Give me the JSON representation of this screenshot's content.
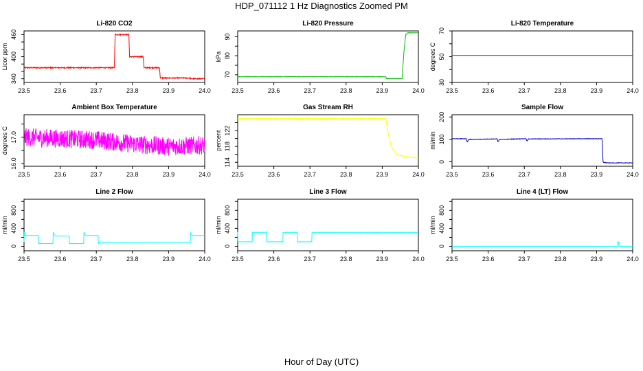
{
  "figure": {
    "title": "HDP_071112  1 Hz Diagnostics Zoomed PM",
    "xlabel": "Hour of Day (UTC)"
  },
  "chart_data": [
    {
      "type": "line",
      "title": "Li-820 CO2",
      "ylabel": "Licor ppm",
      "xlim": [
        23.5,
        24.0
      ],
      "ylim": [
        330,
        470
      ],
      "x_ticks": [
        23.5,
        23.6,
        23.7,
        23.8,
        23.9,
        24.0
      ],
      "x_tick_labels": [
        "23.5",
        "23.6",
        "23.7",
        "23.8",
        "23.9",
        "24.0"
      ],
      "y_ticks": [
        340,
        360,
        380,
        400,
        420,
        440,
        460
      ],
      "y_tick_labels": [
        "340",
        "",
        "",
        "400",
        "",
        "",
        "460"
      ],
      "color": "#ff0000",
      "noise": 1.5,
      "series": [
        {
          "x": [
            23.5,
            23.75,
            23.752,
            23.79,
            23.792,
            23.83,
            23.832,
            23.875,
            23.877,
            23.96,
            23.962,
            24.0
          ],
          "y": [
            370,
            370,
            460,
            460,
            400,
            400,
            370,
            370,
            342,
            342,
            340,
            340
          ]
        }
      ]
    },
    {
      "type": "line",
      "title": "Li-820 Pressure",
      "ylabel": "kPa",
      "xlim": [
        23.5,
        24.0
      ],
      "ylim": [
        66,
        93
      ],
      "x_ticks": [
        23.5,
        23.6,
        23.7,
        23.8,
        23.9,
        24.0
      ],
      "x_tick_labels": [
        "23.5",
        "23.6",
        "23.7",
        "23.8",
        "23.9",
        "24.0"
      ],
      "y_ticks": [
        70,
        75,
        80,
        85,
        90
      ],
      "y_tick_labels": [
        "70",
        "",
        "80",
        "",
        "90"
      ],
      "color": "#00bb00",
      "noise": 0.1,
      "series": [
        {
          "x": [
            23.5,
            23.91,
            23.912,
            23.955,
            23.96,
            23.965,
            23.97,
            24.0
          ],
          "y": [
            69,
            69,
            68,
            68,
            82,
            91,
            92,
            92
          ]
        }
      ]
    },
    {
      "type": "line",
      "title": "Li-820 Temperature",
      "ylabel": "degrees C",
      "xlim": [
        23.5,
        24.0
      ],
      "ylim": [
        30,
        70
      ],
      "x_ticks": [
        23.5,
        23.6,
        23.7,
        23.8,
        23.9,
        24.0
      ],
      "x_tick_labels": [
        "23.5",
        "23.6",
        "23.7",
        "23.8",
        "23.9",
        "24.0"
      ],
      "y_ticks": [
        30,
        40,
        50,
        60,
        70
      ],
      "y_tick_labels": [
        "30",
        "",
        "50",
        "",
        "70"
      ],
      "color": "#cc00cc",
      "noise": 0,
      "series": [
        {
          "x": [
            23.5,
            24.0
          ],
          "y": [
            51,
            51
          ]
        }
      ]
    },
    {
      "type": "line",
      "title": "Ambient Box Temperature",
      "ylabel": "degrees C",
      "xlim": [
        23.5,
        24.0
      ],
      "ylim": [
        15.9,
        17.85
      ],
      "x_ticks": [
        23.5,
        23.6,
        23.7,
        23.8,
        23.9,
        24.0
      ],
      "x_tick_labels": [
        "23.5",
        "23.6",
        "23.7",
        "23.8",
        "23.9",
        "24.0"
      ],
      "y_ticks": [
        16.0,
        16.5,
        17.0,
        17.5
      ],
      "y_tick_labels": [
        "16.0",
        "",
        "17.0",
        ""
      ],
      "color": "#ff00ff",
      "noise": 0.35,
      "series": [
        {
          "x": [
            23.5,
            23.6,
            23.7,
            23.8,
            23.9,
            24.0
          ],
          "y": [
            17.0,
            16.95,
            16.9,
            16.75,
            16.65,
            16.7
          ]
        }
      ]
    },
    {
      "type": "line",
      "title": "Gas Stream RH",
      "ylabel": "percent",
      "xlim": [
        23.5,
        24.0
      ],
      "ylim": [
        113,
        126
      ],
      "x_ticks": [
        23.5,
        23.6,
        23.7,
        23.8,
        23.9,
        24.0
      ],
      "x_tick_labels": [
        "23.5",
        "23.6",
        "23.7",
        "23.8",
        "23.9",
        "24.0"
      ],
      "y_ticks": [
        114,
        116,
        118,
        120,
        122,
        124
      ],
      "y_tick_labels": [
        "114",
        "",
        "118",
        "",
        "122",
        ""
      ],
      "color": "#ffff00",
      "noise": 0.05,
      "series": [
        {
          "x": [
            23.5,
            23.91,
            23.915,
            23.925,
            23.94,
            23.96,
            24.0
          ],
          "y": [
            125,
            125,
            122,
            118,
            116,
            115.5,
            115
          ]
        }
      ]
    },
    {
      "type": "line",
      "title": "Sample Flow",
      "ylabel": "ml/min",
      "xlim": [
        23.5,
        24.0
      ],
      "ylim": [
        -20,
        210
      ],
      "x_ticks": [
        23.5,
        23.6,
        23.7,
        23.8,
        23.9,
        24.0
      ],
      "x_tick_labels": [
        "23.5",
        "23.6",
        "23.7",
        "23.8",
        "23.9",
        "24.0"
      ],
      "y_ticks": [
        0,
        100,
        200
      ],
      "y_tick_labels": [
        "0",
        "100",
        "200"
      ],
      "color": "#0000cc",
      "noise": 1,
      "series": [
        {
          "x": [
            23.5,
            23.54,
            23.542,
            23.546,
            23.625,
            23.627,
            23.632,
            23.705,
            23.707,
            23.712,
            23.915,
            23.918,
            23.93,
            24.0
          ],
          "y": [
            103,
            103,
            88,
            100,
            102,
            90,
            100,
            103,
            92,
            102,
            103,
            -2,
            -5,
            -5
          ]
        }
      ]
    },
    {
      "type": "line",
      "title": "Line 2 Flow",
      "ylabel": "ml/min",
      "xlim": [
        23.5,
        24.0
      ],
      "ylim": [
        -100,
        1050
      ],
      "x_ticks": [
        23.5,
        23.6,
        23.7,
        23.8,
        23.9,
        24.0
      ],
      "x_tick_labels": [
        "23.5",
        "23.6",
        "23.7",
        "23.8",
        "23.9",
        "24.0"
      ],
      "y_ticks": [
        0,
        200,
        400,
        600,
        800,
        1000
      ],
      "y_tick_labels": [
        "0",
        "",
        "400",
        "",
        "800",
        ""
      ],
      "color": "#00ffff",
      "noise": 2,
      "series": [
        {
          "x": [
            23.5,
            23.5,
            23.503,
            23.54,
            23.54,
            23.58,
            23.58,
            23.585,
            23.625,
            23.625,
            23.665,
            23.665,
            23.67,
            23.705,
            23.705,
            23.71,
            23.96,
            23.96,
            23.965,
            24.0
          ],
          "y": [
            100,
            340,
            240,
            240,
            60,
            60,
            330,
            230,
            230,
            60,
            60,
            330,
            240,
            240,
            50,
            90,
            80,
            310,
            240,
            240
          ]
        }
      ]
    },
    {
      "type": "line",
      "title": "Line 3 Flow",
      "ylabel": "ml/min",
      "xlim": [
        23.5,
        24.0
      ],
      "ylim": [
        -100,
        1050
      ],
      "x_ticks": [
        23.5,
        23.6,
        23.7,
        23.8,
        23.9,
        24.0
      ],
      "x_tick_labels": [
        "23.5",
        "23.6",
        "23.7",
        "23.8",
        "23.9",
        "24.0"
      ],
      "y_ticks": [
        0,
        200,
        400,
        600,
        800,
        1000
      ],
      "y_tick_labels": [
        "0",
        "",
        "400",
        "",
        "800",
        ""
      ],
      "color": "#00ffff",
      "noise": 2,
      "series": [
        {
          "x": [
            23.5,
            23.5,
            23.502,
            23.54,
            23.54,
            23.58,
            23.58,
            23.625,
            23.625,
            23.665,
            23.665,
            23.705,
            23.705,
            24.0
          ],
          "y": [
            320,
            100,
            100,
            100,
            310,
            310,
            100,
            100,
            310,
            310,
            100,
            100,
            310,
            310
          ]
        }
      ]
    },
    {
      "type": "line",
      "title": "Line 4 (LT) Flow",
      "ylabel": "ml/min",
      "xlim": [
        23.5,
        24.0
      ],
      "ylim": [
        -100,
        1050
      ],
      "x_ticks": [
        23.5,
        23.6,
        23.7,
        23.8,
        23.9,
        24.0
      ],
      "x_tick_labels": [
        "23.5",
        "23.6",
        "23.7",
        "23.8",
        "23.9",
        "24.0"
      ],
      "y_ticks": [
        0,
        200,
        400,
        600,
        800,
        1000
      ],
      "y_tick_labels": [
        "0",
        "",
        "400",
        "",
        "800",
        ""
      ],
      "color": "#00ffff",
      "noise": 0,
      "series": [
        {
          "x": [
            23.5,
            23.958,
            23.959,
            23.961,
            23.962,
            24.0
          ],
          "y": [
            0,
            0,
            100,
            100,
            0,
            0
          ]
        }
      ]
    }
  ]
}
